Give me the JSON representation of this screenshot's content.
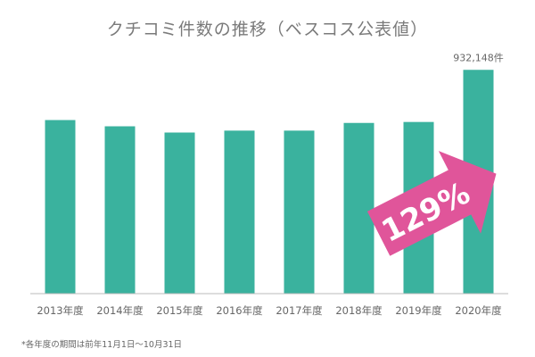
{
  "chart_data": {
    "type": "bar",
    "title": "クチコミ件数の推移（ベスコス公表値）",
    "categories": [
      "2013年度",
      "2014年度",
      "2015年度",
      "2016年度",
      "2017年度",
      "2018年度",
      "2019年度",
      "2020年度"
    ],
    "values": [
      723000,
      697000,
      671000,
      679000,
      679000,
      711000,
      715000,
      932148
    ],
    "ylim": [
      0,
      1000000
    ],
    "grid": false,
    "xlabel": "",
    "ylabel": "",
    "data_labels": [
      {
        "category": "2020年度",
        "text": "932,148件"
      }
    ],
    "annotation": {
      "text": "129%",
      "shape": "arrow",
      "color": "#e0559a"
    },
    "bar_color": "#3ab29e",
    "footnote": "*各年度の期間は前年11月1日〜10月31日"
  }
}
